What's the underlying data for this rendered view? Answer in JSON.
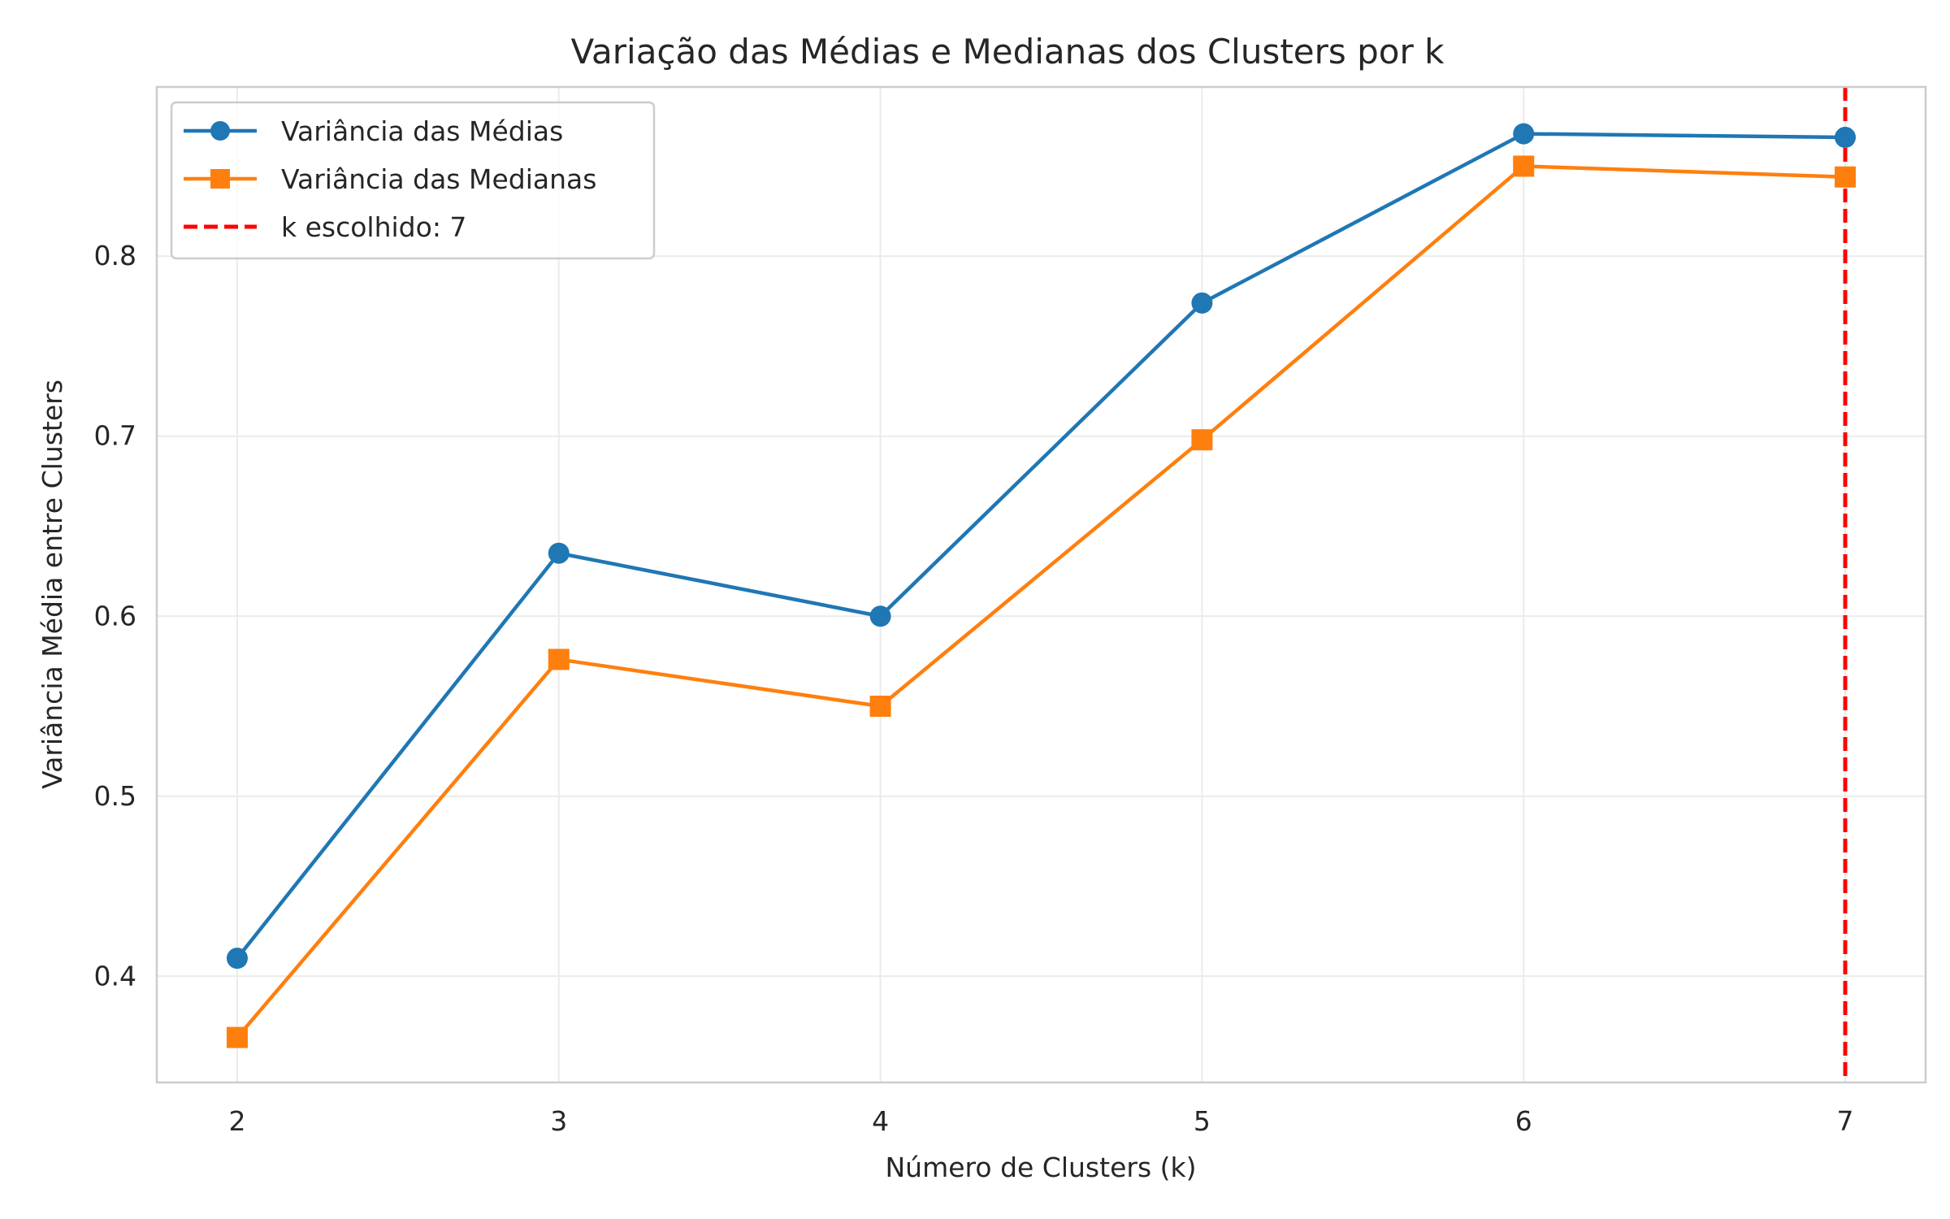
{
  "chart_data": {
    "type": "line",
    "title": "Variação das Médias e Medianas dos Clusters por k",
    "xlabel": "Número de Clusters (k)",
    "ylabel": "Variância Média entre Clusters",
    "x": [
      2,
      3,
      4,
      5,
      6,
      7
    ],
    "x_ticks": [
      "2",
      "3",
      "4",
      "5",
      "6",
      "7"
    ],
    "y_ticks": [
      "0.4",
      "0.5",
      "0.6",
      "0.7",
      "0.8"
    ],
    "xlim": [
      1.75,
      7.25
    ],
    "ylim": [
      0.341,
      0.894
    ],
    "grid": true,
    "legend_position": "top-left",
    "series": [
      {
        "name": "Variância das Médias",
        "values": [
          0.41,
          0.635,
          0.6,
          0.774,
          0.868,
          0.866
        ],
        "color": "#1f77b4",
        "marker": "circle"
      },
      {
        "name": "Variância das Medianas",
        "values": [
          0.366,
          0.576,
          0.55,
          0.698,
          0.85,
          0.844
        ],
        "color": "#ff7f0e",
        "marker": "square"
      }
    ],
    "reference_line": {
      "label": "k escolhido: 7",
      "x": 7,
      "color": "#ff0000",
      "style": "dashed"
    }
  }
}
